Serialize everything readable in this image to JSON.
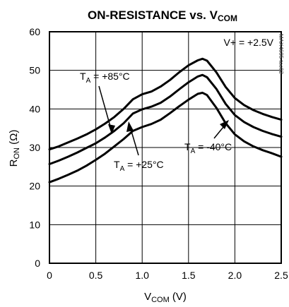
{
  "chart_data": {
    "type": "line",
    "title": "ON-RESISTANCE vs. V_COM",
    "title_main": "ON-RESISTANCE vs. V",
    "title_sub": "COM",
    "xlabel_main": "V",
    "xlabel_sub": "COM",
    "xlabel_unit": " (V)",
    "ylabel_main": "R",
    "ylabel_sub": "ON",
    "ylabel_unit": " (Ω)",
    "xlim": [
      0,
      2.5
    ],
    "ylim": [
      0,
      60
    ],
    "x_ticks": [
      "0",
      "0.5",
      "1.0",
      "1.5",
      "2.0",
      "2.5"
    ],
    "y_ticks": [
      "0",
      "10",
      "20",
      "30",
      "40",
      "50",
      "60"
    ],
    "grid": true,
    "supply_label": "V+ = +2.5V",
    "part_code": "MAX4695 toc02",
    "series": [
      {
        "name": "T_A = +85°C",
        "label_main": "T",
        "label_sub": "A",
        "label_rest": " = +85°C",
        "x": [
          0,
          0.1,
          0.2,
          0.3,
          0.4,
          0.5,
          0.6,
          0.7,
          0.8,
          0.9,
          1.0,
          1.1,
          1.2,
          1.3,
          1.4,
          1.5,
          1.6,
          1.65,
          1.7,
          1.8,
          1.9,
          2.0,
          2.1,
          2.2,
          2.3,
          2.4,
          2.5
        ],
        "values": [
          29.5,
          30.3,
          31.3,
          32.3,
          33.4,
          34.7,
          36.2,
          37.9,
          40.0,
          42.5,
          43.8,
          44.5,
          45.8,
          47.5,
          49.5,
          51.3,
          52.6,
          53.0,
          52.5,
          49.5,
          45.7,
          42.8,
          41.0,
          39.7,
          38.7,
          37.9,
          37.2
        ]
      },
      {
        "name": "T_A = +25°C",
        "label_main": "T",
        "label_sub": "A",
        "label_rest": " = +25°C",
        "x": [
          0,
          0.1,
          0.2,
          0.3,
          0.4,
          0.5,
          0.6,
          0.7,
          0.8,
          0.9,
          1.0,
          1.1,
          1.2,
          1.3,
          1.4,
          1.5,
          1.6,
          1.65,
          1.7,
          1.8,
          1.9,
          2.0,
          2.1,
          2.2,
          2.3,
          2.4,
          2.5
        ],
        "values": [
          25.7,
          26.6,
          27.6,
          28.7,
          29.9,
          31.1,
          32.6,
          34.3,
          36.3,
          38.8,
          39.9,
          40.6,
          41.6,
          43.2,
          45.1,
          46.9,
          48.4,
          48.8,
          48.2,
          45.2,
          41.3,
          38.4,
          36.6,
          35.3,
          34.3,
          33.5,
          32.8
        ]
      },
      {
        "name": "T_A = -40°C",
        "label_main": "T",
        "label_sub": "A",
        "label_rest": " = -40°C",
        "x": [
          0,
          0.1,
          0.2,
          0.3,
          0.4,
          0.5,
          0.6,
          0.7,
          0.8,
          0.9,
          1.0,
          1.1,
          1.2,
          1.3,
          1.4,
          1.5,
          1.6,
          1.65,
          1.7,
          1.8,
          1.9,
          2.0,
          2.1,
          2.2,
          2.3,
          2.4,
          2.5
        ],
        "values": [
          21.0,
          21.9,
          22.9,
          24.0,
          25.3,
          26.8,
          28.4,
          30.3,
          32.2,
          34.3,
          35.3,
          36.1,
          37.2,
          38.9,
          40.7,
          42.4,
          43.9,
          44.2,
          43.6,
          40.3,
          36.3,
          33.4,
          31.6,
          30.3,
          29.3,
          28.5,
          27.6
        ]
      }
    ]
  }
}
